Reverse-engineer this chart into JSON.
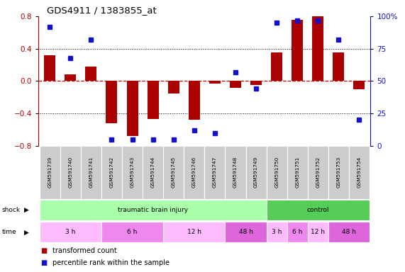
{
  "title": "GDS4911 / 1383855_at",
  "samples": [
    "GSM591739",
    "GSM591740",
    "GSM591741",
    "GSM591742",
    "GSM591743",
    "GSM591744",
    "GSM591745",
    "GSM591746",
    "GSM591747",
    "GSM591748",
    "GSM591749",
    "GSM591750",
    "GSM591751",
    "GSM591752",
    "GSM591753",
    "GSM591754"
  ],
  "transformed_count": [
    0.32,
    0.08,
    0.18,
    -0.52,
    -0.68,
    -0.47,
    -0.15,
    -0.48,
    -0.03,
    -0.08,
    -0.05,
    0.35,
    0.76,
    0.82,
    0.35,
    -0.1
  ],
  "percentile_rank": [
    92,
    68,
    82,
    5,
    5,
    5,
    5,
    12,
    10,
    57,
    44,
    95,
    97,
    97,
    82,
    20
  ],
  "ylim_left": [
    -0.8,
    0.8
  ],
  "ylim_right": [
    0,
    100
  ],
  "yticks_left": [
    -0.8,
    -0.4,
    0.0,
    0.4,
    0.8
  ],
  "yticks_right": [
    0,
    25,
    50,
    75,
    100
  ],
  "bar_color": "#AA0000",
  "dot_color": "#1111CC",
  "zero_line_color": "#CC0000",
  "bg_color": "#ffffff",
  "shock_groups": [
    {
      "label": "traumatic brain injury",
      "start": 0,
      "end": 11,
      "color": "#AAFFAA"
    },
    {
      "label": "control",
      "start": 11,
      "end": 16,
      "color": "#55CC55"
    }
  ],
  "time_groups": [
    {
      "label": "3 h",
      "start": 0,
      "end": 3,
      "color": "#FFBBFF"
    },
    {
      "label": "6 h",
      "start": 3,
      "end": 6,
      "color": "#EE88EE"
    },
    {
      "label": "12 h",
      "start": 6,
      "end": 9,
      "color": "#FFBBFF"
    },
    {
      "label": "48 h",
      "start": 9,
      "end": 11,
      "color": "#DD66DD"
    },
    {
      "label": "3 h",
      "start": 11,
      "end": 12,
      "color": "#FFBBFF"
    },
    {
      "label": "6 h",
      "start": 12,
      "end": 13,
      "color": "#EE88EE"
    },
    {
      "label": "12 h",
      "start": 13,
      "end": 14,
      "color": "#FFBBFF"
    },
    {
      "label": "48 h",
      "start": 14,
      "end": 16,
      "color": "#DD66DD"
    }
  ],
  "legend_items": [
    {
      "label": "transformed count",
      "color": "#AA0000"
    },
    {
      "label": "percentile rank within the sample",
      "color": "#1111CC"
    }
  ],
  "label_bg": "#CCCCCC",
  "label_border": "#999999"
}
